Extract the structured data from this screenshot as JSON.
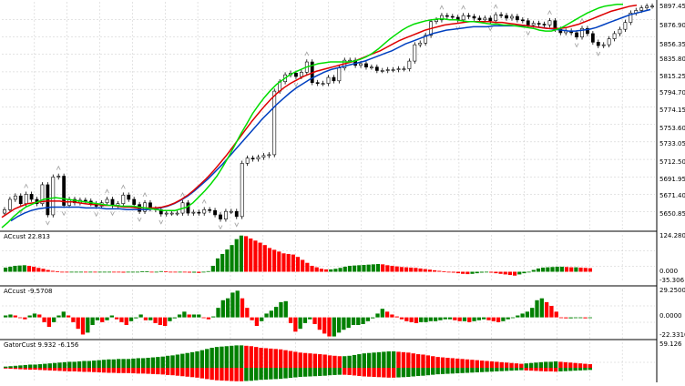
{
  "colors": {
    "background": "#ffffff",
    "grid": "#c8c8c8",
    "axis": "#000000",
    "candle_up": "#ffffff",
    "candle_down": "#000000",
    "alligator_lips": "#00dd00",
    "alligator_teeth": "#dd0000",
    "alligator_jaw": "#0040c0",
    "hist_up": "#008000",
    "hist_down": "#ff0000",
    "fractal_marker": "#a0a0a0"
  },
  "main_chart": {
    "price_labels": [
      "5897.45",
      "5876.90",
      "5856.35",
      "5835.80",
      "5815.25",
      "5794.70",
      "5774.15",
      "5753.60",
      "5733.05",
      "5712.50",
      "5691.95",
      "5671.40",
      "5650.85"
    ],
    "ylim": [
      5645,
      5910
    ]
  },
  "ac_panel": {
    "label": "ACcust 22.813",
    "scale_labels": [
      "124.280",
      "0.000",
      "-35.306"
    ],
    "ylim": [
      -35.306,
      124.28
    ]
  },
  "ac2_panel": {
    "label": "ACcust -9.5708",
    "scale_labels": [
      "29.2500",
      "0.0000",
      "-22.3310"
    ],
    "ylim": [
      -22.331,
      29.25
    ]
  },
  "gator_panel": {
    "label": "GatorCust 9.932 -6.156",
    "scale_labels": [
      "59.126"
    ],
    "ylim": [
      0,
      59.126
    ]
  },
  "chart_data": {
    "type": "candlestick",
    "candles_close": [
      5668,
      5680,
      5684,
      5675,
      5686,
      5680,
      5675,
      5697,
      5662,
      5706,
      5707,
      5673,
      5680,
      5676,
      5679,
      5678,
      5675,
      5672,
      5676,
      5680,
      5673,
      5675,
      5685,
      5680,
      5674,
      5666,
      5676,
      5669,
      5668,
      5663,
      5664,
      5664,
      5664,
      5676,
      5664,
      5665,
      5664,
      5668,
      5667,
      5662,
      5657,
      5666,
      5666,
      5660,
      5722,
      5728,
      5727,
      5729,
      5731,
      5732,
      5806,
      5817,
      5825,
      5827,
      5823,
      5828,
      5840,
      5816,
      5815,
      5815,
      5822,
      5818,
      5833,
      5842,
      5842,
      5836,
      5838,
      5834,
      5834,
      5830,
      5830,
      5831,
      5831,
      5832,
      5832,
      5841,
      5860,
      5862,
      5871,
      5887,
      5889,
      5894,
      5893,
      5892,
      5889,
      5894,
      5893,
      5891,
      5889,
      5891,
      5888,
      5895,
      5894,
      5891,
      5893,
      5889,
      5888,
      5883,
      5885,
      5884,
      5883,
      5888,
      5878,
      5874,
      5876,
      5874,
      5869,
      5879,
      5873,
      5863,
      5859,
      5860,
      5867,
      5873,
      5878,
      5886,
      5897,
      5900,
      5903,
      5905,
      5905
    ],
    "lips": [
      5647,
      5653,
      5660,
      5666,
      5671,
      5674,
      5677,
      5680,
      5681,
      5682,
      5681,
      5680,
      5679,
      5678,
      5677,
      5676,
      5675,
      5674,
      5673,
      5673,
      5672,
      5672,
      5672,
      5671,
      5670,
      5669,
      5668,
      5667,
      5667,
      5667,
      5669,
      5671,
      5676,
      5683,
      5690,
      5698,
      5707,
      5718,
      5730,
      5743,
      5756,
      5768,
      5780,
      5790,
      5799,
      5807,
      5814,
      5819,
      5824,
      5828,
      5831,
      5834,
      5836,
      5838,
      5839,
      5840,
      5840,
      5840,
      5840,
      5841,
      5843,
      5846,
      5850,
      5855,
      5861,
      5867,
      5872,
      5877,
      5881,
      5884,
      5886,
      5888,
      5889,
      5890,
      5890,
      5889,
      5889,
      5888,
      5887,
      5887,
      5886,
      5885,
      5884,
      5884,
      5883,
      5883,
      5882,
      5881,
      5880,
      5879,
      5877,
      5876,
      5876,
      5878,
      5881,
      5885,
      5889,
      5893,
      5897,
      5900,
      5903,
      5905,
      5906,
      5907,
      5907
    ],
    "teeth": [
      5659,
      5664,
      5669,
      5672,
      5675,
      5676,
      5677,
      5678,
      5678,
      5678,
      5677,
      5677,
      5676,
      5675,
      5674,
      5674,
      5673,
      5673,
      5672,
      5671,
      5671,
      5670,
      5670,
      5670,
      5670,
      5671,
      5673,
      5676,
      5680,
      5685,
      5691,
      5698,
      5705,
      5713,
      5722,
      5731,
      5741,
      5751,
      5761,
      5771,
      5780,
      5789,
      5797,
      5804,
      5810,
      5815,
      5819,
      5823,
      5826,
      5829,
      5831,
      5833,
      5835,
      5837,
      5839,
      5841,
      5844,
      5847,
      5850,
      5853,
      5857,
      5861,
      5865,
      5868,
      5871,
      5874,
      5877,
      5879,
      5881,
      5883,
      5884,
      5885,
      5886,
      5887,
      5887,
      5887,
      5887,
      5886,
      5886,
      5885,
      5884,
      5883,
      5882,
      5881,
      5880,
      5879,
      5879,
      5879,
      5880,
      5882,
      5884,
      5887,
      5890,
      5893,
      5896,
      5899,
      5901,
      5903,
      5905,
      5906
    ],
    "jaw": [
      5655,
      5660,
      5664,
      5667,
      5669,
      5670,
      5671,
      5671,
      5671,
      5671,
      5671,
      5670,
      5670,
      5670,
      5669,
      5669,
      5669,
      5668,
      5668,
      5668,
      5668,
      5669,
      5670,
      5672,
      5675,
      5679,
      5684,
      5690,
      5697,
      5704,
      5712,
      5720,
      5729,
      5738,
      5747,
      5756,
      5765,
      5774,
      5782,
      5790,
      5797,
      5804,
      5810,
      5815,
      5820,
      5824,
      5828,
      5831,
      5833,
      5835,
      5837,
      5839,
      5841,
      5844,
      5847,
      5850,
      5853,
      5857,
      5861,
      5864,
      5867,
      5870,
      5873,
      5875,
      5877,
      5878,
      5879,
      5880,
      5881,
      5881,
      5881,
      5882,
      5882,
      5882,
      5882,
      5882,
      5882,
      5881,
      5880,
      5879,
      5878,
      5877,
      5876,
      5876,
      5877,
      5878,
      5880,
      5883,
      5886,
      5889,
      5892,
      5895,
      5897,
      5899,
      5901
    ],
    "ac_hist": [
      14,
      17,
      20,
      21,
      22,
      20,
      17,
      13,
      10,
      6,
      3,
      1,
      -1,
      -2,
      -1,
      0,
      0,
      -1,
      -1,
      -2,
      -1,
      -1,
      0,
      -1,
      -2,
      -3,
      -2,
      -1,
      0,
      1,
      1,
      0,
      0,
      2,
      1,
      0,
      -1,
      -1,
      -2,
      -3,
      -3,
      -4,
      -2,
      2,
      20,
      45,
      60,
      75,
      90,
      110,
      122,
      120,
      112,
      105,
      98,
      90,
      80,
      74,
      68,
      62,
      60,
      58,
      50,
      40,
      30,
      20,
      15,
      10,
      8,
      8,
      10,
      13,
      17,
      20,
      21,
      22,
      23,
      24,
      25,
      26,
      25,
      22,
      20,
      18,
      16,
      15,
      14,
      13,
      11,
      9,
      7,
      5,
      3,
      1,
      -1,
      -3,
      -5,
      -7,
      -8,
      -7,
      -5,
      -3,
      -2,
      -3,
      -5,
      -7,
      -9,
      -11,
      -13,
      -9,
      -5,
      0,
      6,
      11,
      14,
      15,
      16,
      17,
      17,
      16,
      15,
      15,
      14,
      13,
      12
    ],
    "ac2_hist": [
      2,
      3,
      2,
      0,
      -2,
      2,
      4,
      3,
      -5,
      -10,
      -5,
      2,
      6,
      2,
      -5,
      -12,
      -18,
      -16,
      -8,
      -3,
      -5,
      -3,
      2,
      -2,
      -5,
      -8,
      -4,
      -1,
      3,
      -3,
      -3,
      -6,
      -8,
      -9,
      -4,
      -1,
      3,
      6,
      3,
      3,
      3,
      0,
      -2,
      1,
      10,
      18,
      20,
      26,
      28,
      20,
      10,
      -3,
      -9,
      -4,
      4,
      7,
      11,
      16,
      17,
      -6,
      -15,
      -12,
      -6,
      -2,
      -7,
      -13,
      -17,
      -20,
      -20,
      -16,
      -13,
      -11,
      -8,
      -8,
      -7,
      -4,
      -1,
      4,
      9,
      6,
      3,
      1,
      -2,
      -4,
      -5,
      -6,
      -5,
      -5,
      -4,
      -4,
      -3,
      -2,
      -2,
      -3,
      -4,
      -4,
      -5,
      -4,
      -3,
      -2,
      -3,
      -4,
      -5,
      -4,
      -2,
      0,
      2,
      4,
      6,
      10,
      18,
      20,
      16,
      12,
      6,
      0,
      -1,
      -1,
      0,
      0,
      -1,
      0
    ],
    "gator_hist": [
      3,
      4,
      5,
      6,
      7,
      8,
      8,
      9,
      10,
      11,
      12,
      13,
      14,
      15,
      15,
      16,
      17,
      17,
      18,
      19,
      20,
      21,
      21,
      22,
      22,
      22,
      23,
      24,
      24,
      25,
      26,
      27,
      28,
      30,
      31,
      33,
      35,
      37,
      39,
      41,
      44,
      47,
      50,
      52,
      53,
      54,
      55,
      56,
      56,
      55,
      54,
      52,
      50,
      49,
      48,
      47,
      46,
      44,
      42,
      40,
      38,
      37,
      36,
      35,
      34,
      33,
      31,
      30,
      29,
      29,
      30,
      32,
      34,
      36,
      37,
      38,
      39,
      40,
      41,
      41,
      40,
      39,
      38,
      36,
      34,
      33,
      31,
      29,
      27,
      26,
      25,
      24,
      23,
      22,
      21,
      20,
      19,
      18,
      17,
      16,
      15,
      14,
      13,
      12,
      11,
      10,
      11,
      12,
      13,
      14,
      15,
      15,
      16,
      15,
      14,
      13,
      12,
      11,
      10,
      9
    ]
  }
}
